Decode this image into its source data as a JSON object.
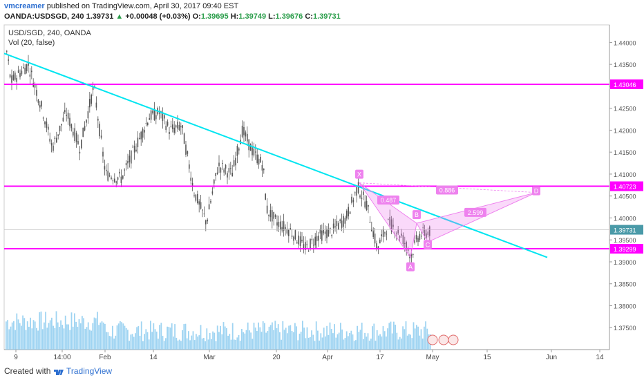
{
  "header": {
    "author": "vmcreamer",
    "published_text": "published on TradingView.com, April 30, 2017 09:40 EST",
    "symbol": "OANDA:USDSGD, 240",
    "last": "1.39731",
    "change": "+0.00048 (+0.03%)",
    "o_label": "O:",
    "o_val": "1.39695",
    "h_label": "H:",
    "h_val": "1.39749",
    "l_label": "L:",
    "l_val": "1.39676",
    "c_label": "C:",
    "c_val": "1.39731"
  },
  "plot": {
    "title": "USD/SGD, 240, OANDA",
    "volume_label": "Vol (20, false)"
  },
  "footer": {
    "created_with": "Created with",
    "brand": "TradingView"
  },
  "colors": {
    "hline": "#ff00ff",
    "trend": "#00e5f0",
    "candle": "#555555",
    "pattern": "#ee82ee",
    "volume": "#8ecdf0"
  },
  "chart_data": {
    "type": "candlestick",
    "title": "USD/SGD, 240, OANDA",
    "ylim": [
      1.37,
      1.444
    ],
    "y_ticks": [
      "1.44000",
      "1.43500",
      "1.43000",
      "1.42500",
      "1.42000",
      "1.41500",
      "1.41000",
      "1.40500",
      "1.40000",
      "1.39500",
      "1.39000",
      "1.38500",
      "1.38000",
      "1.37500"
    ],
    "x_ticks": [
      "9",
      "14:00",
      "Feb",
      "14",
      "Mar",
      "20",
      "Apr",
      "17",
      "May",
      "15",
      "Jun",
      "14"
    ],
    "horizontal_lines": [
      {
        "label": "1.43046",
        "value": 1.43046
      },
      {
        "label": "1.40723",
        "value": 1.40723
      },
      {
        "label": "1.39299",
        "value": 1.39299
      }
    ],
    "last_price": {
      "label": "1.39731",
      "value": 1.39731
    },
    "trendline": {
      "from": [
        "9",
        1.4375
      ],
      "to": [
        "Jun",
        1.391
      ]
    },
    "pattern_points": [
      {
        "label": "X",
        "value": 1.408
      },
      {
        "label": "A",
        "value": 1.391
      },
      {
        "label": "B",
        "value": 1.3988
      },
      {
        "label": "C",
        "value": 1.3945
      },
      {
        "label": "D",
        "value": 1.4058
      }
    ],
    "pattern_ratios": [
      "0.487",
      "0.886",
      "2.599"
    ]
  }
}
